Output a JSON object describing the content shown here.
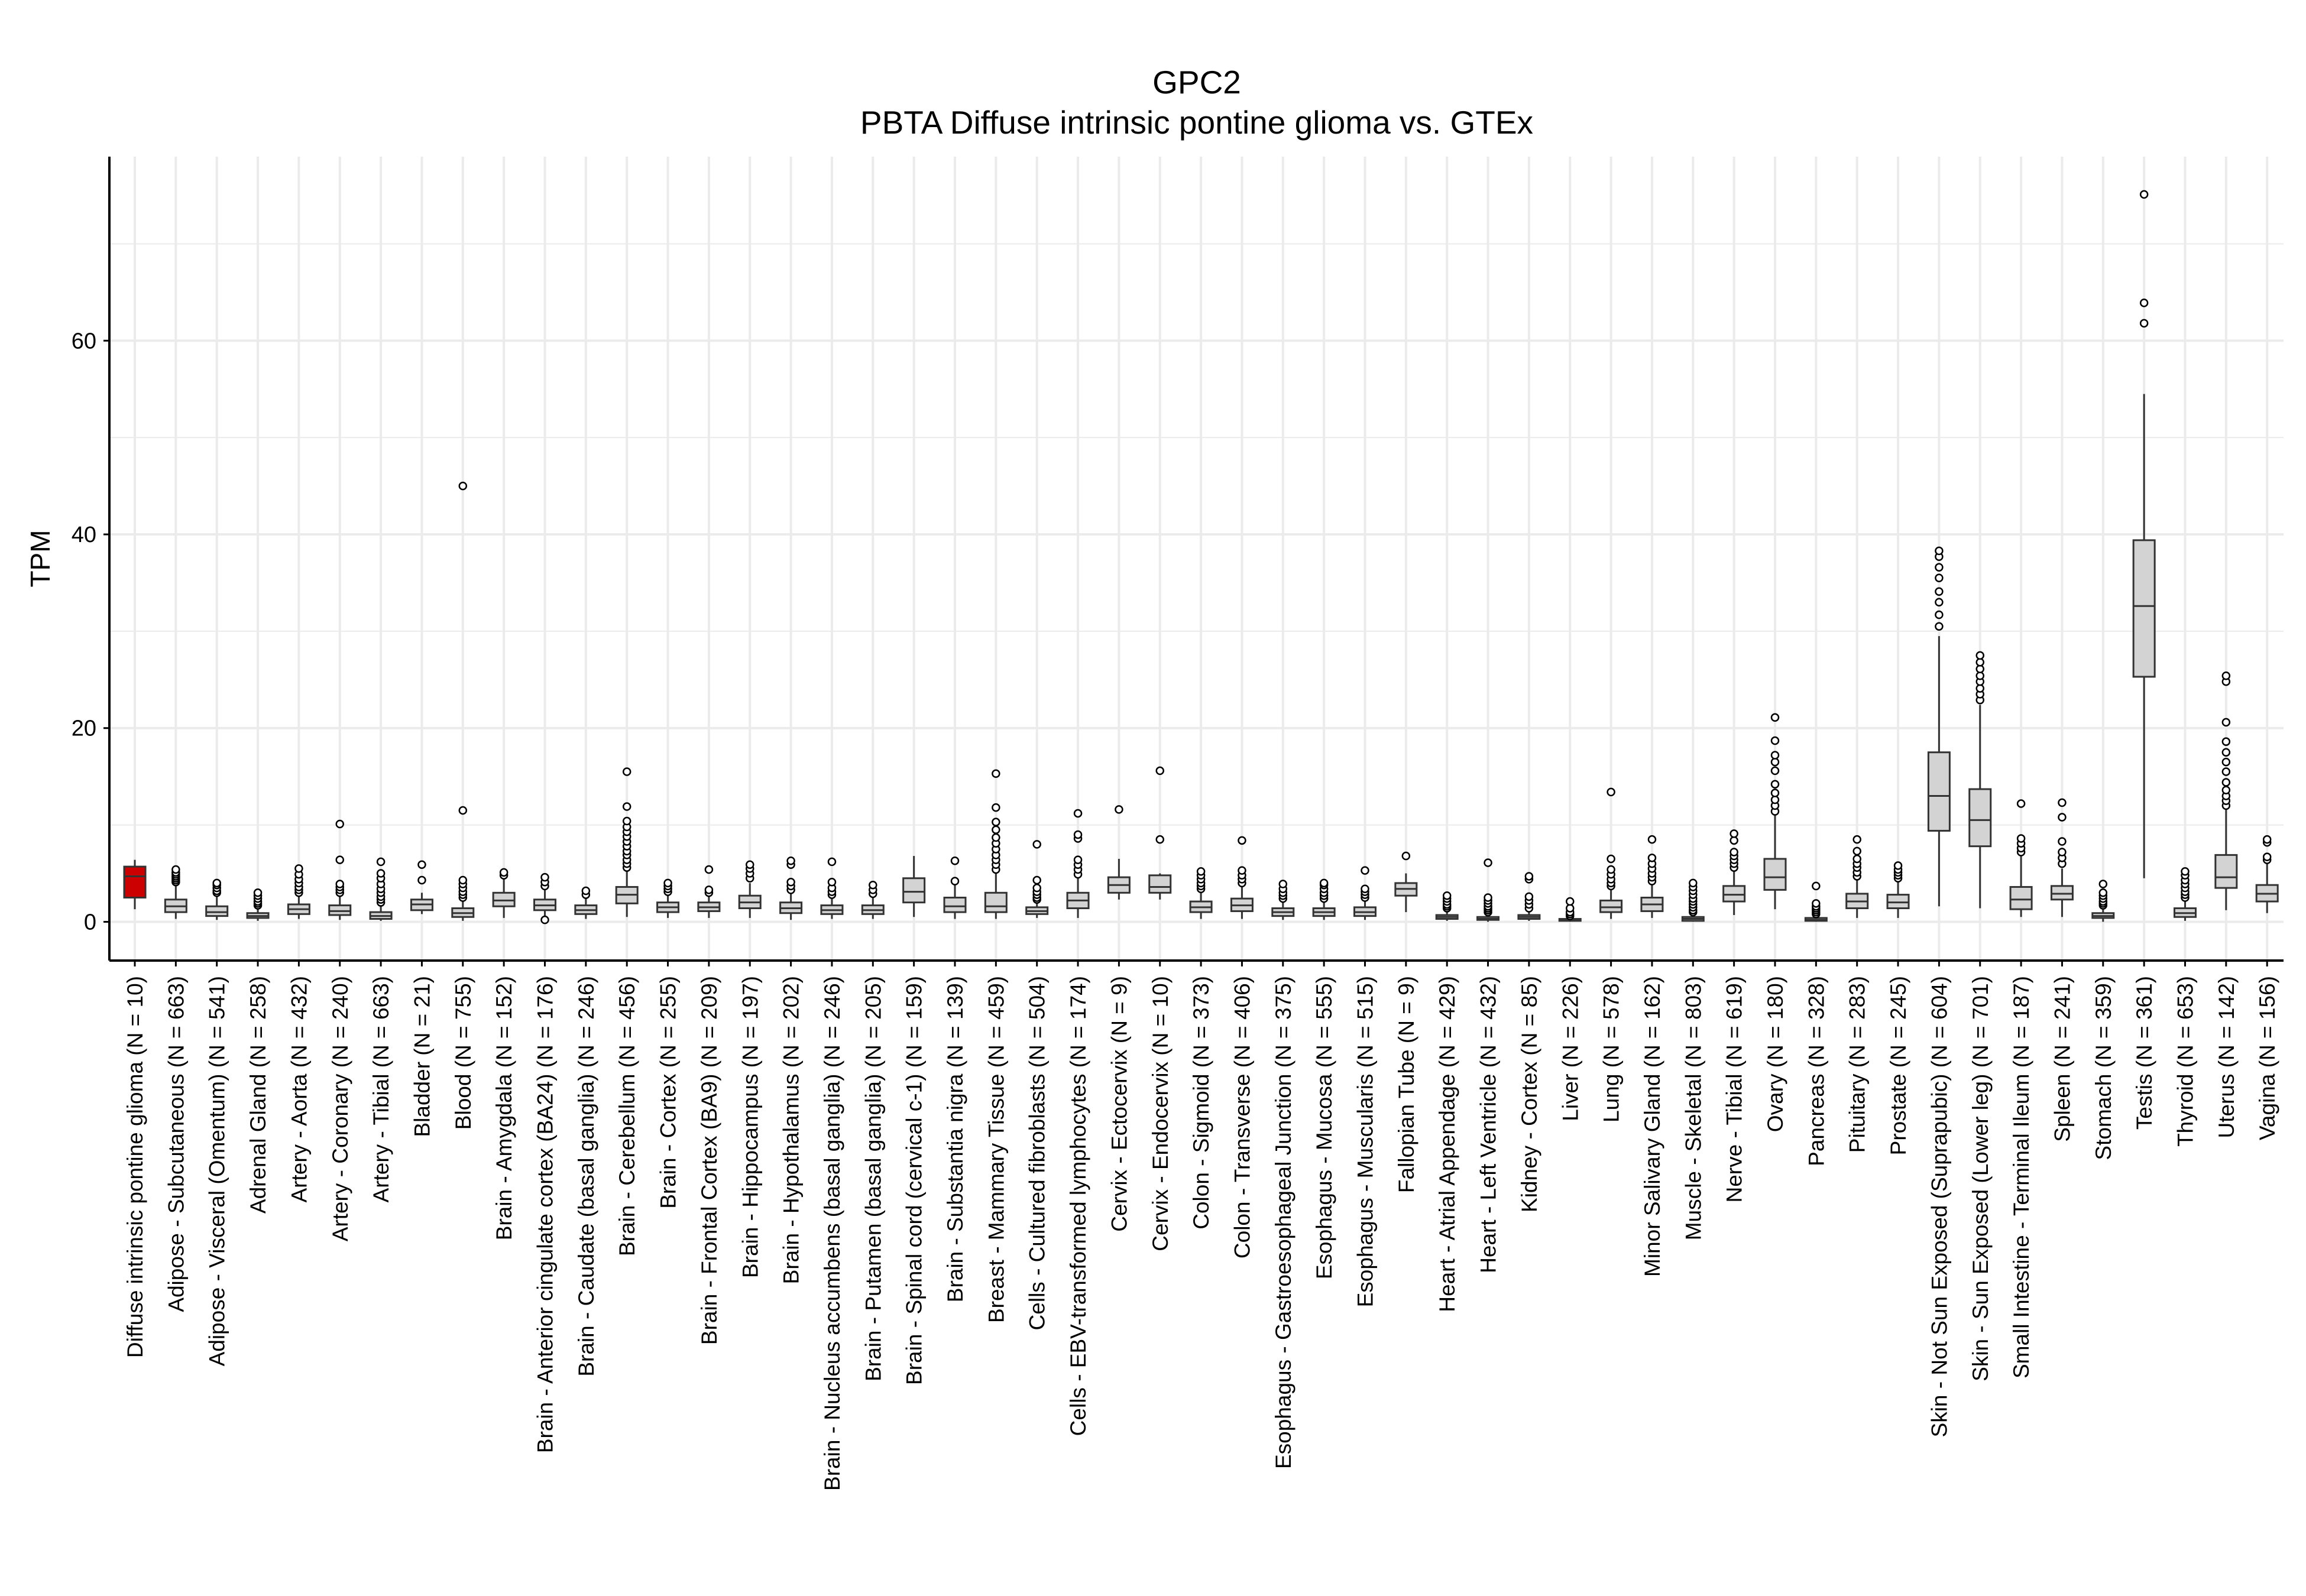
{
  "chart_data": {
    "type": "boxplot",
    "title": "GPC2",
    "subtitle": "PBTA Diffuse intrinsic pontine glioma vs. GTEx",
    "xlabel": "",
    "ylabel": "TPM",
    "ylim": [
      -4,
      79
    ],
    "yticks": [
      0,
      20,
      40,
      60
    ],
    "grid": true,
    "legend": "none",
    "colors": {
      "highlight": "#cc0000",
      "default": "#d3d3d3",
      "grid": "#ebebeb",
      "axis": "#000000"
    },
    "categories": [
      "Diffuse intrinsic pontine glioma (N = 10)",
      "Adipose - Subcutaneous (N = 663)",
      "Adipose - Visceral (Omentum) (N = 541)",
      "Adrenal Gland (N = 258)",
      "Artery - Aorta (N = 432)",
      "Artery - Coronary (N = 240)",
      "Artery - Tibial (N = 663)",
      "Bladder (N = 21)",
      "Blood (N = 755)",
      "Brain - Amygdala (N = 152)",
      "Brain - Anterior cingulate cortex (BA24) (N = 176)",
      "Brain - Caudate (basal ganglia) (N = 246)",
      "Brain - Cerebellum (N = 456)",
      "Brain - Cortex (N = 255)",
      "Brain - Frontal Cortex (BA9) (N = 209)",
      "Brain - Hippocampus (N = 197)",
      "Brain - Hypothalamus (N = 202)",
      "Brain - Nucleus accumbens (basal ganglia) (N = 246)",
      "Brain - Putamen (basal ganglia) (N = 205)",
      "Brain - Spinal cord (cervical c-1) (N = 159)",
      "Brain - Substantia nigra (N = 139)",
      "Breast - Mammary Tissue (N = 459)",
      "Cells - Cultured fibroblasts (N = 504)",
      "Cells - EBV-transformed lymphocytes (N = 174)",
      "Cervix - Ectocervix (N = 9)",
      "Cervix - Endocervix (N = 10)",
      "Colon - Sigmoid (N = 373)",
      "Colon - Transverse (N = 406)",
      "Esophagus - Gastroesophageal Junction (N = 375)",
      "Esophagus - Mucosa (N = 555)",
      "Esophagus - Muscularis (N = 515)",
      "Fallopian Tube (N = 9)",
      "Heart - Atrial Appendage (N = 429)",
      "Heart - Left Ventricle (N = 432)",
      "Kidney - Cortex (N = 85)",
      "Liver (N = 226)",
      "Lung (N = 578)",
      "Minor Salivary Gland (N = 162)",
      "Muscle - Skeletal (N = 803)",
      "Nerve - Tibial (N = 619)",
      "Ovary (N = 180)",
      "Pancreas (N = 328)",
      "Pituitary (N = 283)",
      "Prostate (N = 245)",
      "Skin - Not Sun Exposed (Suprapubic) (N = 604)",
      "Skin - Sun Exposed (Lower leg) (N = 701)",
      "Small Intestine - Terminal Ileum (N = 187)",
      "Spleen (N = 241)",
      "Stomach (N = 359)",
      "Testis (N = 361)",
      "Thyroid (N = 653)",
      "Uterus (N = 142)",
      "Vagina (N = 156)"
    ],
    "boxes": [
      {
        "min": 1.3,
        "q1": 2.5,
        "median": 4.7,
        "q3": 5.7,
        "max": 6.4,
        "outliers": [],
        "highlight": true
      },
      {
        "min": 0.3,
        "q1": 1.0,
        "median": 1.6,
        "q3": 2.3,
        "max": 3.9,
        "outliers": [
          4.1,
          4.3,
          4.5,
          4.7,
          4.9,
          5.1,
          5.4
        ]
      },
      {
        "min": 0.2,
        "q1": 0.6,
        "median": 1.0,
        "q3": 1.6,
        "max": 2.9,
        "outliers": [
          3.0,
          3.2,
          3.5,
          3.8,
          4.0
        ]
      },
      {
        "min": 0.1,
        "q1": 0.4,
        "median": 0.6,
        "q3": 0.9,
        "max": 1.5,
        "outliers": [
          1.7,
          1.9,
          2.1,
          2.4,
          2.7,
          3.0
        ]
      },
      {
        "min": 0.3,
        "q1": 0.8,
        "median": 1.3,
        "q3": 1.8,
        "max": 2.8,
        "outliers": [
          3.0,
          3.3,
          3.6,
          4.0,
          4.4,
          4.9,
          5.5
        ]
      },
      {
        "min": 0.2,
        "q1": 0.7,
        "median": 1.1,
        "q3": 1.7,
        "max": 2.8,
        "outliers": [
          3.0,
          3.3,
          3.6,
          3.9,
          6.4,
          10.1
        ]
      },
      {
        "min": 0.1,
        "q1": 0.3,
        "median": 0.6,
        "q3": 1.0,
        "max": 1.8,
        "outliers": [
          2.0,
          2.3,
          2.6,
          3.0,
          3.4,
          3.9,
          4.5,
          5.0,
          6.2
        ]
      },
      {
        "min": 0.8,
        "q1": 1.2,
        "median": 1.8,
        "q3": 2.3,
        "max": 3.0,
        "outliers": [
          4.3,
          5.9
        ]
      },
      {
        "min": 0.1,
        "q1": 0.5,
        "median": 0.9,
        "q3": 1.4,
        "max": 2.3,
        "outliers": [
          2.5,
          2.8,
          3.1,
          3.5,
          3.9,
          4.3,
          11.5,
          45.0
        ]
      },
      {
        "min": 0.4,
        "q1": 1.6,
        "median": 2.2,
        "q3": 3.0,
        "max": 4.5,
        "outliers": [
          4.8,
          5.1
        ]
      },
      {
        "min": 0.4,
        "q1": 1.2,
        "median": 1.7,
        "q3": 2.3,
        "max": 3.4,
        "outliers": [
          0.2,
          3.7,
          4.1,
          4.6
        ]
      },
      {
        "min": 0.3,
        "q1": 0.8,
        "median": 1.2,
        "q3": 1.7,
        "max": 2.5,
        "outliers": [
          2.8,
          3.2
        ]
      },
      {
        "min": 0.5,
        "q1": 1.9,
        "median": 2.8,
        "q3": 3.6,
        "max": 5.2,
        "outliers": [
          5.6,
          6.0,
          6.4,
          6.9,
          7.3,
          7.8,
          8.3,
          8.8,
          9.3,
          9.8,
          10.4,
          11.9,
          15.5
        ]
      },
      {
        "min": 0.4,
        "q1": 1.0,
        "median": 1.5,
        "q3": 2.0,
        "max": 2.9,
        "outliers": [
          3.1,
          3.4,
          3.7,
          4.0
        ]
      },
      {
        "min": 0.4,
        "q1": 1.1,
        "median": 1.5,
        "q3": 2.0,
        "max": 2.8,
        "outliers": [
          3.0,
          3.3,
          5.4
        ]
      },
      {
        "min": 0.4,
        "q1": 1.4,
        "median": 2.0,
        "q3": 2.7,
        "max": 4.0,
        "outliers": [
          4.5,
          5.0,
          5.5,
          5.9
        ]
      },
      {
        "min": 0.2,
        "q1": 0.9,
        "median": 1.4,
        "q3": 2.0,
        "max": 3.0,
        "outliers": [
          3.3,
          3.7,
          4.1,
          5.9,
          6.3
        ]
      },
      {
        "min": 0.3,
        "q1": 0.8,
        "median": 1.2,
        "q3": 1.7,
        "max": 2.5,
        "outliers": [
          2.8,
          3.1,
          3.5,
          4.1,
          6.2
        ]
      },
      {
        "min": 0.3,
        "q1": 0.8,
        "median": 1.2,
        "q3": 1.7,
        "max": 2.6,
        "outliers": [
          2.9,
          3.3,
          3.8
        ]
      },
      {
        "min": 0.5,
        "q1": 2.0,
        "median": 3.1,
        "q3": 4.5,
        "max": 6.8,
        "outliers": []
      },
      {
        "min": 0.3,
        "q1": 1.0,
        "median": 1.6,
        "q3": 2.5,
        "max": 3.8,
        "outliers": [
          4.2,
          6.3
        ]
      },
      {
        "min": 0.3,
        "q1": 1.0,
        "median": 1.6,
        "q3": 3.0,
        "max": 5.0,
        "outliers": [
          5.4,
          5.9,
          6.4,
          6.9,
          7.5,
          8.1,
          8.7,
          9.5,
          10.3,
          11.8,
          15.3
        ]
      },
      {
        "min": 0.4,
        "q1": 0.8,
        "median": 1.1,
        "q3": 1.5,
        "max": 2.1,
        "outliers": [
          2.3,
          2.5,
          2.8,
          3.1,
          3.5,
          4.3,
          8.0
        ]
      },
      {
        "min": 0.4,
        "q1": 1.4,
        "median": 2.2,
        "q3": 3.0,
        "max": 4.5,
        "outliers": [
          4.9,
          5.4,
          5.9,
          6.4,
          8.6,
          9.0,
          11.2
        ]
      },
      {
        "min": 2.3,
        "q1": 3.0,
        "median": 3.8,
        "q3": 4.6,
        "max": 6.5,
        "outliers": [
          11.6
        ]
      },
      {
        "min": 2.3,
        "q1": 3.0,
        "median": 3.6,
        "q3": 4.8,
        "max": 5.0,
        "outliers": [
          8.5,
          15.6
        ]
      },
      {
        "min": 0.3,
        "q1": 1.0,
        "median": 1.5,
        "q3": 2.1,
        "max": 3.1,
        "outliers": [
          3.4,
          3.7,
          4.0,
          4.4,
          4.8,
          5.2
        ]
      },
      {
        "min": 0.3,
        "q1": 1.1,
        "median": 1.7,
        "q3": 2.4,
        "max": 3.7,
        "outliers": [
          4.0,
          4.4,
          4.8,
          5.3,
          8.4
        ]
      },
      {
        "min": 0.2,
        "q1": 0.6,
        "median": 1.0,
        "q3": 1.4,
        "max": 2.2,
        "outliers": [
          2.4,
          2.7,
          3.0,
          3.4,
          3.9
        ]
      },
      {
        "min": 0.2,
        "q1": 0.6,
        "median": 1.0,
        "q3": 1.4,
        "max": 2.2,
        "outliers": [
          2.4,
          2.7,
          3.0,
          3.4,
          3.8,
          4.0
        ]
      },
      {
        "min": 0.2,
        "q1": 0.6,
        "median": 1.0,
        "q3": 1.5,
        "max": 2.3,
        "outliers": [
          2.5,
          2.8,
          3.1,
          3.4,
          5.3
        ]
      },
      {
        "min": 1.0,
        "q1": 2.7,
        "median": 3.4,
        "q3": 4.0,
        "max": 5.0,
        "outliers": [
          6.8
        ]
      },
      {
        "min": 0.1,
        "q1": 0.3,
        "median": 0.5,
        "q3": 0.7,
        "max": 1.2,
        "outliers": [
          1.4,
          1.6,
          1.8,
          2.1,
          2.4,
          2.7
        ]
      },
      {
        "min": 0.0,
        "q1": 0.2,
        "median": 0.3,
        "q3": 0.5,
        "max": 0.9,
        "outliers": [
          1.0,
          1.2,
          1.4,
          1.6,
          1.9,
          2.2,
          2.5,
          6.1
        ]
      },
      {
        "min": 0.1,
        "q1": 0.3,
        "median": 0.5,
        "q3": 0.7,
        "max": 1.2,
        "outliers": [
          1.4,
          1.8,
          2.2,
          2.6,
          4.4,
          4.7
        ]
      },
      {
        "min": 0.0,
        "q1": 0.1,
        "median": 0.2,
        "q3": 0.3,
        "max": 0.5,
        "outliers": [
          0.6,
          0.8,
          1.0,
          1.4,
          2.1
        ]
      },
      {
        "min": 0.3,
        "q1": 1.0,
        "median": 1.5,
        "q3": 2.2,
        "max": 3.4,
        "outliers": [
          3.7,
          4.0,
          4.4,
          4.9,
          5.4,
          6.5,
          13.4
        ]
      },
      {
        "min": 0.4,
        "q1": 1.1,
        "median": 1.8,
        "q3": 2.5,
        "max": 3.8,
        "outliers": [
          4.2,
          4.6,
          5.0,
          5.5,
          6.0,
          6.6,
          8.5
        ]
      },
      {
        "min": 0.0,
        "q1": 0.1,
        "median": 0.3,
        "q3": 0.5,
        "max": 0.8,
        "outliers": [
          1.0,
          1.2,
          1.5,
          1.8,
          2.1,
          2.4,
          2.8,
          3.2,
          3.6,
          4.0
        ]
      },
      {
        "min": 0.7,
        "q1": 2.1,
        "median": 2.8,
        "q3": 3.7,
        "max": 5.3,
        "outliers": [
          5.6,
          6.0,
          6.4,
          6.8,
          7.2,
          8.4,
          9.1
        ]
      },
      {
        "min": 1.3,
        "q1": 3.3,
        "median": 4.6,
        "q3": 6.5,
        "max": 11.0,
        "outliers": [
          11.4,
          12.0,
          12.6,
          13.3,
          14.2,
          15.6,
          16.5,
          17.2,
          18.7,
          21.1
        ]
      },
      {
        "min": 0.0,
        "q1": 0.1,
        "median": 0.2,
        "q3": 0.4,
        "max": 0.7,
        "outliers": [
          0.8,
          1.0,
          1.2,
          1.4,
          1.6,
          1.9,
          3.7
        ]
      },
      {
        "min": 0.4,
        "q1": 1.4,
        "median": 2.1,
        "q3": 2.9,
        "max": 4.4,
        "outliers": [
          4.7,
          5.1,
          5.6,
          6.0,
          6.5,
          7.3,
          8.5
        ]
      },
      {
        "min": 0.4,
        "q1": 1.4,
        "median": 2.0,
        "q3": 2.8,
        "max": 4.2,
        "outliers": [
          4.5,
          4.8,
          5.1,
          5.4,
          5.8
        ]
      },
      {
        "min": 1.6,
        "q1": 9.4,
        "median": 13.0,
        "q3": 17.5,
        "max": 29.5,
        "outliers": [
          30.5,
          31.7,
          33.0,
          34.1,
          35.5,
          36.6,
          37.7,
          38.3
        ]
      },
      {
        "min": 1.4,
        "q1": 7.8,
        "median": 10.5,
        "q3": 13.7,
        "max": 22.4,
        "outliers": [
          22.9,
          23.5,
          24.1,
          24.8,
          25.4,
          26.1,
          26.8,
          27.5
        ]
      },
      {
        "min": 0.5,
        "q1": 1.3,
        "median": 2.3,
        "q3": 3.6,
        "max": 6.8,
        "outliers": [
          7.2,
          7.6,
          8.1,
          8.6,
          12.2
        ]
      },
      {
        "min": 0.5,
        "q1": 2.3,
        "median": 2.9,
        "q3": 3.7,
        "max": 5.5,
        "outliers": [
          6.0,
          6.6,
          7.2,
          8.3,
          10.8,
          12.3
        ]
      },
      {
        "min": 0.0,
        "q1": 0.4,
        "median": 0.6,
        "q3": 0.9,
        "max": 1.5,
        "outliers": [
          1.7,
          1.9,
          2.1,
          2.4,
          2.7,
          3.0,
          3.9
        ]
      },
      {
        "min": 4.5,
        "q1": 25.3,
        "median": 32.6,
        "q3": 39.4,
        "max": 54.5,
        "outliers": [
          61.8,
          63.9,
          75.1
        ]
      },
      {
        "min": 0.1,
        "q1": 0.5,
        "median": 0.9,
        "q3": 1.4,
        "max": 2.3,
        "outliers": [
          2.5,
          2.8,
          3.1,
          3.5,
          3.9,
          4.3,
          4.8,
          5.2
        ]
      },
      {
        "min": 1.2,
        "q1": 3.5,
        "median": 4.6,
        "q3": 6.9,
        "max": 11.7,
        "outliers": [
          12.0,
          12.5,
          13.0,
          13.6,
          14.4,
          15.5,
          16.5,
          17.5,
          18.6,
          20.6,
          24.8,
          25.4
        ]
      },
      {
        "min": 0.9,
        "q1": 2.1,
        "median": 2.9,
        "q3": 3.8,
        "max": 6.0,
        "outliers": [
          6.4,
          6.7,
          8.2,
          8.5
        ]
      }
    ]
  }
}
